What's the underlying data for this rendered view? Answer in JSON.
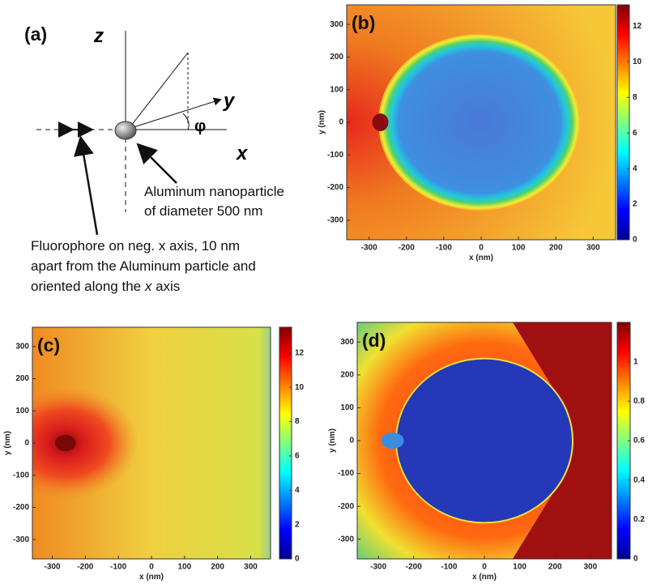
{
  "panel_a": {
    "label": "(a)",
    "z_label": "z",
    "y_label": "y",
    "x_label": "x",
    "angle_label": "φ",
    "particle_note": [
      "Aluminum nanoparticle",
      "of diameter 500 nm"
    ],
    "fluorophore_note": [
      "Fluorophore on neg. x axis, 10 nm",
      "apart from the Aluminum particle and"
    ],
    "fluorophore_last_line": [
      "oriented along the ",
      "x",
      " axis"
    ]
  },
  "panel_b": {
    "label": "(b)",
    "xlabel": "x (nm)",
    "ylabel": "y (nm)",
    "xlim": [
      -360,
      360
    ],
    "ylim": [
      -360,
      360
    ],
    "xticks": [
      -300,
      -200,
      -100,
      0,
      100,
      200,
      300
    ],
    "yticks": [
      -300,
      -200,
      -100,
      0,
      100,
      200,
      300
    ],
    "clim": [
      0,
      13.2
    ],
    "cticks": [
      0,
      2,
      4,
      6,
      8,
      10,
      12
    ]
  },
  "panel_c": {
    "label": "(c)",
    "xlabel": "x (nm)",
    "ylabel": "y (nm)",
    "xlim": [
      -360,
      360
    ],
    "ylim": [
      -360,
      360
    ],
    "xticks": [
      -300,
      -200,
      -100,
      0,
      100,
      200,
      300
    ],
    "yticks": [
      -300,
      -200,
      -100,
      0,
      100,
      200,
      300
    ],
    "clim": [
      0,
      13.5
    ],
    "cticks": [
      0,
      2,
      4,
      6,
      8,
      10,
      12
    ]
  },
  "panel_d": {
    "label": "(d)",
    "xlabel": "x (nm)",
    "ylabel": "y (nm)",
    "xlim": [
      -360,
      360
    ],
    "ylim": [
      -360,
      360
    ],
    "xticks": [
      -300,
      -200,
      -100,
      0,
      100,
      200,
      300
    ],
    "yticks": [
      -300,
      -200,
      -100,
      0,
      100,
      200,
      300
    ],
    "clim": [
      0,
      1.2
    ],
    "cticks": [
      0,
      0.2,
      0.4,
      0.6,
      0.8,
      1
    ]
  }
}
